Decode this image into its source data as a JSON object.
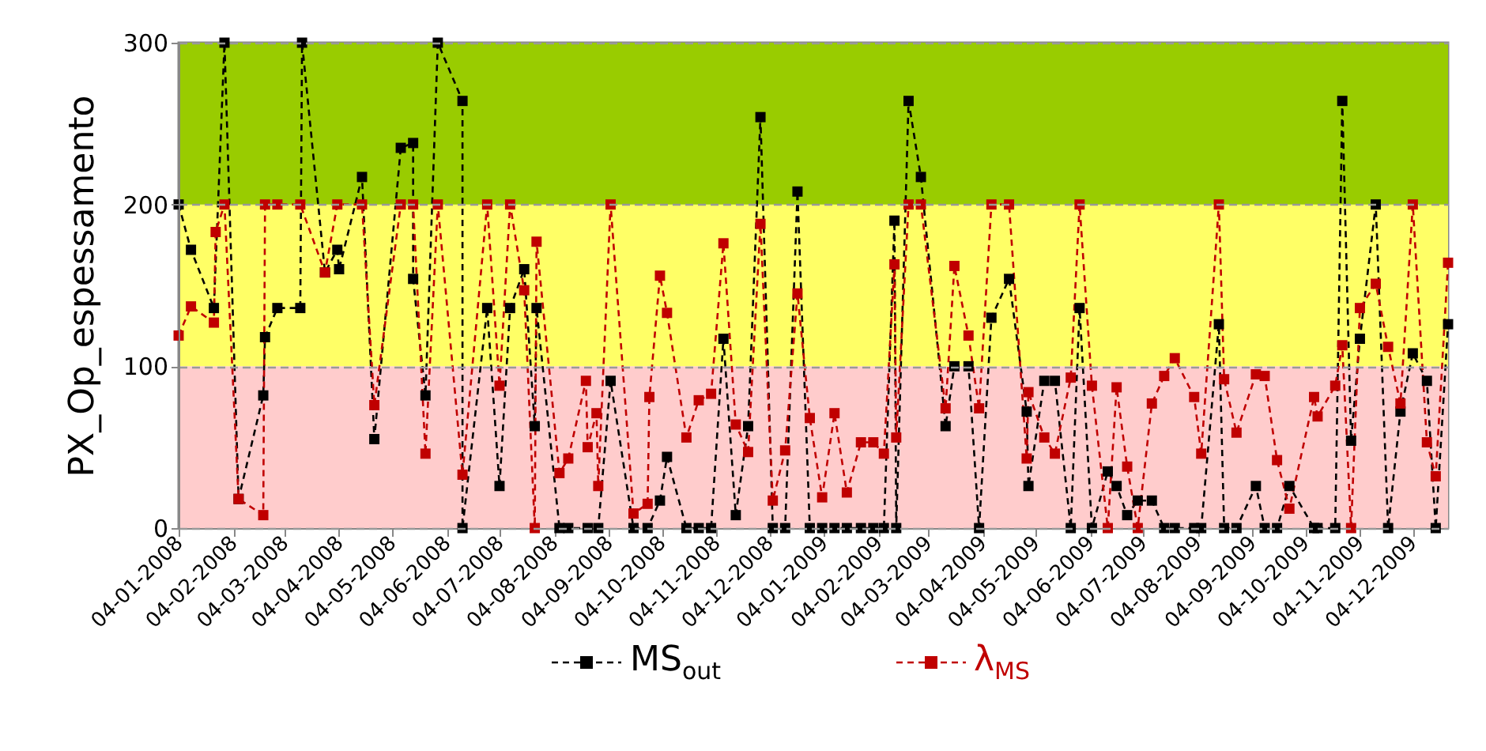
{
  "chart_data": {
    "type": "line",
    "ylabel": "PX_Op_espessamento",
    "ylim": [
      0,
      300
    ],
    "yticks": [
      0,
      100,
      200,
      300
    ],
    "xlim": [
      "2008-01-04",
      "2009-12-24"
    ],
    "xticks": [
      {
        "value": "2008-01-04",
        "label": "04-01-2008"
      },
      {
        "value": "2008-02-04",
        "label": "04-02-2008"
      },
      {
        "value": "2008-03-04",
        "label": "04-03-2008"
      },
      {
        "value": "2008-04-04",
        "label": "04-04-2008"
      },
      {
        "value": "2008-05-04",
        "label": "04-05-2008"
      },
      {
        "value": "2008-06-04",
        "label": "04-06-2008"
      },
      {
        "value": "2008-07-04",
        "label": "04-07-2008"
      },
      {
        "value": "2008-08-04",
        "label": "04-08-2008"
      },
      {
        "value": "2008-09-04",
        "label": "04-09-2008"
      },
      {
        "value": "2008-10-04",
        "label": "04-10-2008"
      },
      {
        "value": "2008-11-04",
        "label": "04-11-2008"
      },
      {
        "value": "2008-12-04",
        "label": "04-12-2008"
      },
      {
        "value": "2009-01-04",
        "label": "04-01-2009"
      },
      {
        "value": "2009-02-04",
        "label": "04-02-2009"
      },
      {
        "value": "2009-03-04",
        "label": "04-03-2009"
      },
      {
        "value": "2009-04-04",
        "label": "04-04-2009"
      },
      {
        "value": "2009-05-04",
        "label": "04-05-2009"
      },
      {
        "value": "2009-06-04",
        "label": "04-06-2009"
      },
      {
        "value": "2009-07-04",
        "label": "04-07-2009"
      },
      {
        "value": "2009-08-04",
        "label": "04-08-2009"
      },
      {
        "value": "2009-09-04",
        "label": "04-09-2009"
      },
      {
        "value": "2009-10-04",
        "label": "04-10-2009"
      },
      {
        "value": "2009-11-04",
        "label": "04-11-2009"
      },
      {
        "value": "2009-12-04",
        "label": "04-12-2009"
      }
    ],
    "grid": "y",
    "legend": "bottom",
    "marker": "square",
    "line_style": "dashed",
    "bands": [
      {
        "axis": "y",
        "from": 0,
        "to": 100,
        "color": "#ffcccc"
      },
      {
        "axis": "y",
        "from": 100,
        "to": 200,
        "color": "#ffff66"
      },
      {
        "axis": "y",
        "from": 200,
        "to": 300,
        "color": "#99cc00"
      }
    ],
    "series": [
      {
        "name": "MS$_{out}$",
        "color": "#000000",
        "x": [
          "2008-01-04",
          "2008-01-11",
          "2008-01-24",
          "2008-01-30",
          "2008-02-07",
          "2008-02-21",
          "2008-02-22",
          "2008-02-29",
          "2008-03-13",
          "2008-03-14",
          "2008-03-27",
          "2008-04-03",
          "2008-04-04",
          "2008-04-17",
          "2008-04-24",
          "2008-05-09",
          "2008-05-16",
          "2008-05-16",
          "2008-05-23",
          "2008-05-30",
          "2008-06-13",
          "2008-06-13",
          "2008-06-27",
          "2008-07-04",
          "2008-07-10",
          "2008-07-18",
          "2008-07-24",
          "2008-07-25",
          "2008-08-07",
          "2008-08-12",
          "2008-08-23",
          "2008-08-29",
          "2008-09-05",
          "2008-09-18",
          "2008-09-26",
          "2008-10-03",
          "2008-10-07",
          "2008-10-18",
          "2008-10-25",
          "2008-11-01",
          "2008-11-08",
          "2008-11-15",
          "2008-11-22",
          "2008-11-29",
          "2008-12-06",
          "2008-12-13",
          "2008-12-20",
          "2008-12-27",
          "2009-01-03",
          "2009-01-10",
          "2009-01-17",
          "2009-01-25",
          "2009-02-01",
          "2009-02-07",
          "2009-02-13",
          "2009-02-14",
          "2009-02-21",
          "2009-02-28",
          "2009-03-14",
          "2009-03-19",
          "2009-03-27",
          "2009-04-02",
          "2009-04-09",
          "2009-04-19",
          "2009-04-29",
          "2009-04-30",
          "2009-05-09",
          "2009-05-15",
          "2009-05-24",
          "2009-05-29",
          "2009-06-05",
          "2009-06-14",
          "2009-06-19",
          "2009-06-25",
          "2009-07-01",
          "2009-07-09",
          "2009-07-16",
          "2009-07-22",
          "2009-08-02",
          "2009-08-06",
          "2009-08-16",
          "2009-08-19",
          "2009-08-26",
          "2009-09-06",
          "2009-09-11",
          "2009-09-18",
          "2009-09-25",
          "2009-10-09",
          "2009-10-11",
          "2009-10-21",
          "2009-10-25",
          "2009-10-30",
          "2009-11-04",
          "2009-11-13",
          "2009-11-20",
          "2009-11-27",
          "2009-12-04",
          "2009-12-12",
          "2009-12-17",
          "2009-12-24"
        ],
        "values": [
          200,
          172,
          136,
          300,
          18,
          82,
          118,
          136,
          136,
          300,
          158,
          172,
          160,
          217,
          55,
          235,
          238,
          154,
          82,
          300,
          264,
          0,
          136,
          26,
          136,
          160,
          63,
          136,
          0,
          0,
          0,
          0,
          91,
          0,
          0,
          17,
          44,
          0,
          0,
          0,
          117,
          8,
          63,
          254,
          0,
          0,
          208,
          0,
          0,
          0,
          0,
          0,
          0,
          0,
          190,
          0,
          264,
          217,
          63,
          100,
          100,
          0,
          130,
          154,
          72,
          26,
          91,
          91,
          0,
          136,
          0,
          35,
          26,
          8,
          17,
          17,
          0,
          0,
          0,
          0,
          126,
          0,
          0,
          26,
          0,
          0,
          26,
          0,
          0,
          0,
          264,
          54,
          117,
          200,
          0,
          72,
          108,
          91,
          0,
          126
        ]
      },
      {
        "name": "λ$_{MS}$",
        "color": "#c00000",
        "x": [
          "2008-01-04",
          "2008-01-11",
          "2008-01-24",
          "2008-01-25",
          "2008-01-30",
          "2008-02-07",
          "2008-02-21",
          "2008-02-22",
          "2008-02-29",
          "2008-03-13",
          "2008-03-27",
          "2008-04-03",
          "2008-04-17",
          "2008-04-24",
          "2008-05-09",
          "2008-05-16",
          "2008-05-23",
          "2008-05-30",
          "2008-06-13",
          "2008-06-27",
          "2008-07-04",
          "2008-07-10",
          "2008-07-18",
          "2008-07-24",
          "2008-07-25",
          "2008-08-07",
          "2008-08-12",
          "2008-08-22",
          "2008-08-23",
          "2008-08-28",
          "2008-08-29",
          "2008-09-05",
          "2008-09-18",
          "2008-09-26",
          "2008-09-27",
          "2008-10-03",
          "2008-10-07",
          "2008-10-18",
          "2008-10-25",
          "2008-11-01",
          "2008-11-08",
          "2008-11-15",
          "2008-11-22",
          "2008-11-29",
          "2008-12-06",
          "2008-12-13",
          "2008-12-20",
          "2008-12-27",
          "2009-01-03",
          "2009-01-10",
          "2009-01-17",
          "2009-01-25",
          "2009-02-01",
          "2009-02-07",
          "2009-02-13",
          "2009-02-14",
          "2009-02-21",
          "2009-02-28",
          "2009-03-14",
          "2009-03-19",
          "2009-03-27",
          "2009-04-02",
          "2009-04-09",
          "2009-04-19",
          "2009-04-29",
          "2009-04-30",
          "2009-05-09",
          "2009-05-15",
          "2009-05-24",
          "2009-05-29",
          "2009-06-05",
          "2009-06-14",
          "2009-06-19",
          "2009-06-25",
          "2009-07-01",
          "2009-07-09",
          "2009-07-16",
          "2009-07-22",
          "2009-08-02",
          "2009-08-06",
          "2009-08-16",
          "2009-08-19",
          "2009-08-26",
          "2009-09-06",
          "2009-09-11",
          "2009-09-18",
          "2009-09-25",
          "2009-10-09",
          "2009-10-11",
          "2009-10-21",
          "2009-10-25",
          "2009-10-30",
          "2009-11-04",
          "2009-11-13",
          "2009-11-20",
          "2009-11-27",
          "2009-12-04",
          "2009-12-12",
          "2009-12-17",
          "2009-12-24"
        ],
        "values": [
          119,
          137,
          127,
          183,
          200,
          18,
          8,
          200,
          200,
          200,
          158,
          200,
          200,
          76,
          200,
          200,
          46,
          200,
          33,
          200,
          88,
          200,
          147,
          0,
          177,
          34,
          43,
          91,
          50,
          71,
          26,
          200,
          9,
          15,
          81,
          156,
          133,
          56,
          79,
          83,
          176,
          64,
          47,
          188,
          17,
          48,
          145,
          68,
          19,
          71,
          22,
          53,
          53,
          46,
          163,
          56,
          200,
          200,
          74,
          162,
          119,
          74,
          200,
          200,
          43,
          84,
          56,
          46,
          93,
          200,
          88,
          0,
          87,
          38,
          0,
          77,
          94,
          105,
          81,
          46,
          200,
          92,
          59,
          95,
          94,
          42,
          12,
          81,
          69,
          88,
          113,
          0,
          136,
          151,
          112,
          77,
          200,
          53,
          32,
          164
        ]
      }
    ]
  }
}
